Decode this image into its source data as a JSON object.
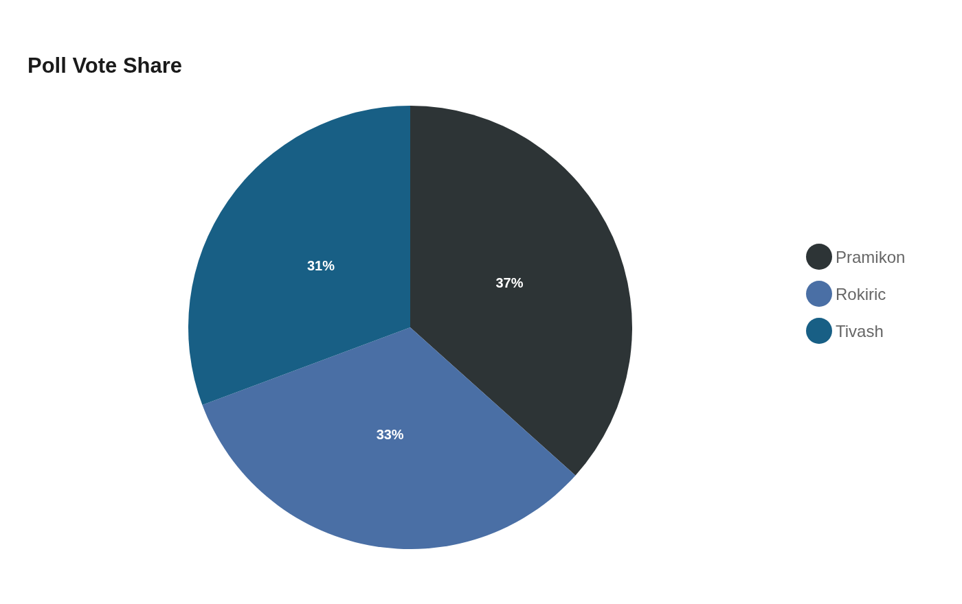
{
  "chart_data": {
    "type": "pie",
    "title": "Poll Vote Share",
    "categories": [
      "Pramikon",
      "Rokiric",
      "Tivash"
    ],
    "values": [
      37,
      33,
      31
    ],
    "colors": [
      "#2d3436",
      "#4a6fa5",
      "#185f85"
    ],
    "value_labels": [
      "37%",
      "33%",
      "31%"
    ],
    "legend": "right"
  }
}
